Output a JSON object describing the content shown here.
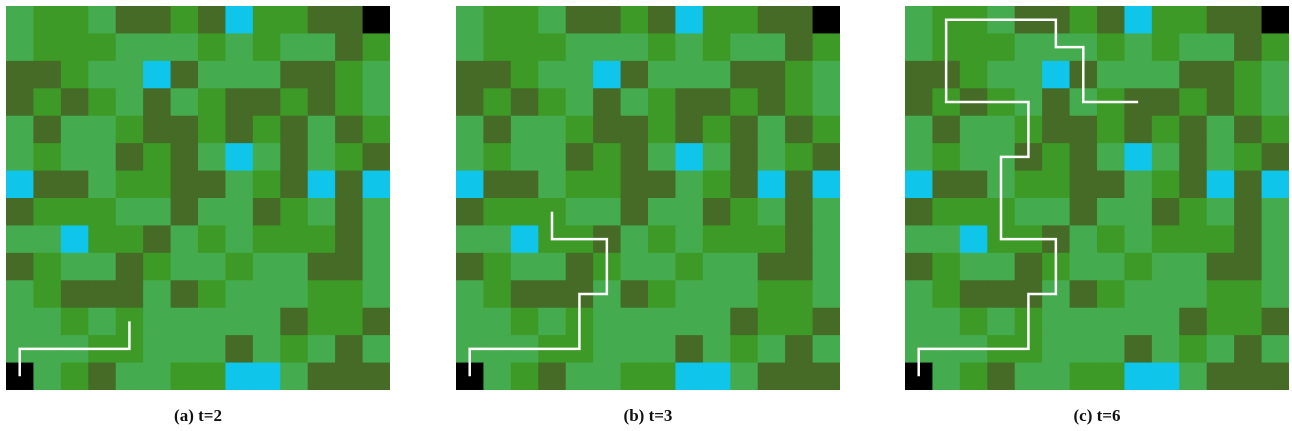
{
  "palette": {
    "L": "#44ab4f",
    "M": "#3d9a26",
    "D": "#456b26",
    "C": "#0fc5ea",
    "K": "#000000",
    "path": "#ffffff"
  },
  "grid": [
    "LMMLDDMDCMMDDK",
    "LMMMLLLMLMLLDM",
    "DDMLLCDLLLDDML",
    "DMDMLDLMDDMDML",
    "LDLLMDDMDMDLDM",
    "LMLLDMDLCLDLMD",
    "CDDLMMDDLMDCDC",
    "DMMMLLDLLDMLDL",
    "LLCMMDLMLMMMDL",
    "DMLLDMLLMLLDDL",
    "LMDDDLDMLLLMML",
    "LLMLMLLLLLDMMD",
    "LLLMMLLLDLMLDL",
    "KLMDLLMMCCLDDD"
  ],
  "panels": [
    {
      "tag": "(a)",
      "label": "t=2",
      "path": [
        [
          0.5,
          13.5
        ],
        [
          0.5,
          12.5
        ],
        [
          4.5,
          12.5
        ],
        [
          4.5,
          11.5
        ]
      ]
    },
    {
      "tag": "(b)",
      "label": "t=3",
      "path": [
        [
          0.5,
          13.5
        ],
        [
          0.5,
          12.5
        ],
        [
          4.5,
          12.5
        ],
        [
          4.5,
          10.5
        ],
        [
          5.5,
          10.5
        ],
        [
          5.5,
          8.5
        ],
        [
          3.5,
          8.5
        ],
        [
          3.5,
          7.5
        ]
      ]
    },
    {
      "tag": "(c)",
      "label": "t=6",
      "path": [
        [
          0.5,
          13.5
        ],
        [
          0.5,
          12.5
        ],
        [
          4.5,
          12.5
        ],
        [
          4.5,
          10.5
        ],
        [
          5.5,
          10.5
        ],
        [
          5.5,
          8.5
        ],
        [
          3.5,
          8.5
        ],
        [
          3.5,
          5.5
        ],
        [
          4.5,
          5.5
        ],
        [
          4.5,
          3.5
        ],
        [
          1.5,
          3.5
        ],
        [
          1.5,
          0.5
        ],
        [
          5.5,
          0.5
        ],
        [
          5.5,
          1.5
        ],
        [
          6.5,
          1.5
        ],
        [
          6.5,
          3.5
        ],
        [
          8.5,
          3.5
        ]
      ]
    }
  ]
}
